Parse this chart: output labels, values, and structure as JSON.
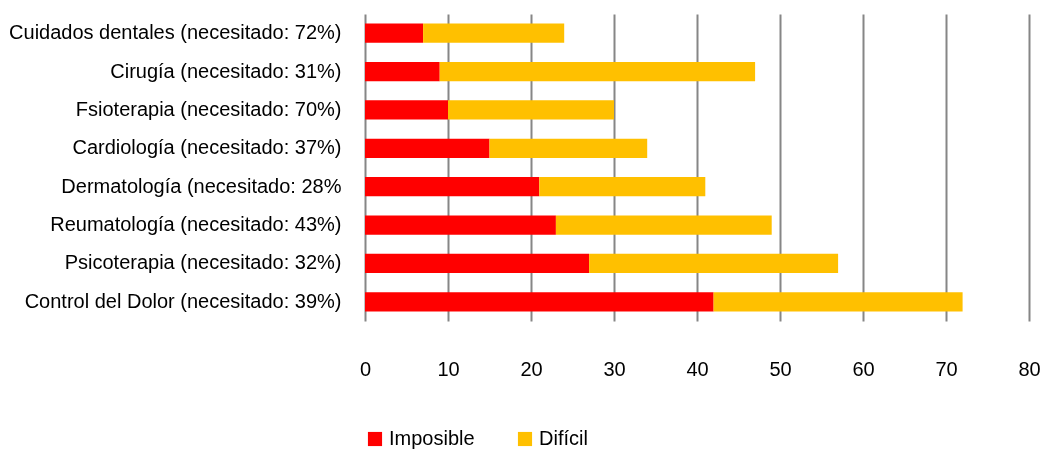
{
  "chart_data": {
    "type": "bar",
    "orientation": "horizontal",
    "stacked": true,
    "categories": [
      "Cuidados dentales (necesitado: 72%)",
      "Cirugía (necesitado: 31%)",
      "Fsioterapia (necesitado: 70%)",
      "Cardiología (necesitado: 37%)",
      "Dermatología (necesitado: 28%",
      "Reumatología  (necesitado: 43%)",
      "Psicoterapia (necesitado: 32%)",
      "Control del Dolor (necesitado: 39%)"
    ],
    "series": [
      {
        "name": "Imposible",
        "color": "#ff0000",
        "values": [
          7,
          9,
          10,
          15,
          21,
          23,
          27,
          42
        ]
      },
      {
        "name": "Difícil",
        "color": "#ffc000",
        "values": [
          17,
          38,
          20,
          19,
          20,
          26,
          30,
          30
        ]
      }
    ],
    "xlim": [
      0,
      80
    ],
    "xticks": [
      0,
      10,
      20,
      30,
      40,
      50,
      60,
      70,
      80
    ],
    "grid": "x",
    "legend": "bottom"
  }
}
